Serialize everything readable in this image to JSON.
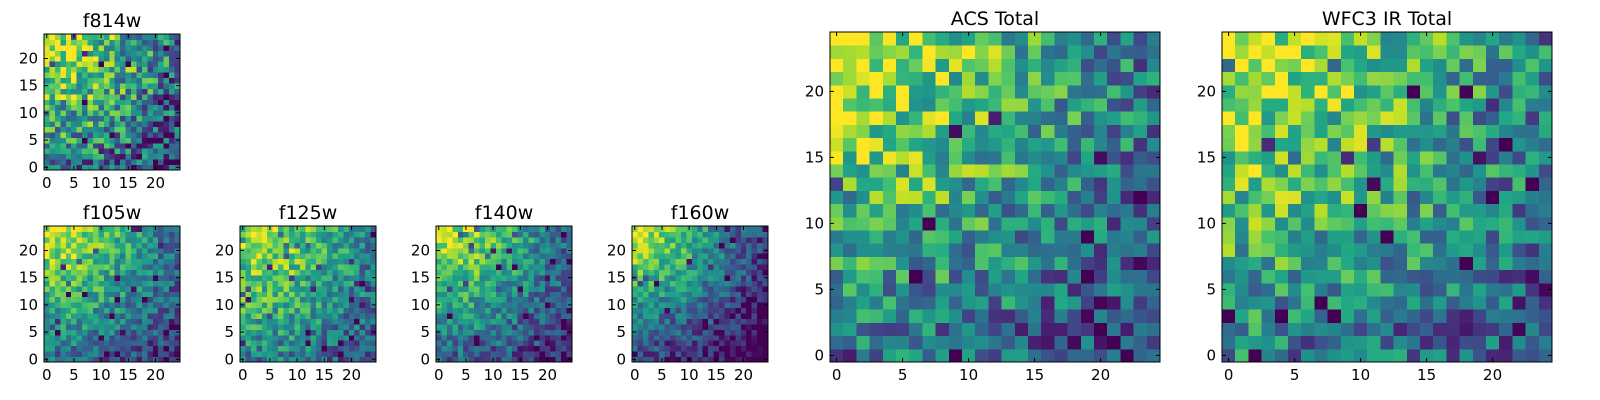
{
  "chart_data": [
    {
      "type": "heatmap",
      "title": "f814w",
      "xlabel": "",
      "ylabel": "",
      "grid_size": [
        25,
        25
      ],
      "xlim": [
        0,
        24
      ],
      "ylim": [
        0,
        24
      ],
      "x_ticks": [
        0,
        5,
        10,
        15,
        20
      ],
      "y_ticks": [
        0,
        5,
        10,
        15,
        20
      ],
      "colormap": "viridis",
      "grid": false,
      "pattern": {
        "peak": "top-left",
        "noise": 0.36,
        "falloff": 0.75
      }
    },
    {
      "type": "heatmap",
      "title": "f105w",
      "xlabel": "",
      "ylabel": "",
      "grid_size": [
        25,
        25
      ],
      "xlim": [
        0,
        24
      ],
      "ylim": [
        0,
        24
      ],
      "x_ticks": [
        0,
        5,
        10,
        15,
        20
      ],
      "y_ticks": [
        0,
        5,
        10,
        15,
        20
      ],
      "colormap": "viridis",
      "grid": false,
      "pattern": {
        "peak": "top-left",
        "noise": 0.22,
        "falloff": 0.8
      }
    },
    {
      "type": "heatmap",
      "title": "f125w",
      "xlabel": "",
      "ylabel": "",
      "grid_size": [
        25,
        25
      ],
      "xlim": [
        0,
        24
      ],
      "ylim": [
        0,
        24
      ],
      "x_ticks": [
        0,
        5,
        10,
        15,
        20
      ],
      "y_ticks": [
        0,
        5,
        10,
        15,
        20
      ],
      "colormap": "viridis",
      "grid": false,
      "pattern": {
        "peak": "top-left",
        "noise": 0.24,
        "falloff": 0.7
      }
    },
    {
      "type": "heatmap",
      "title": "f140w",
      "xlabel": "",
      "ylabel": "",
      "grid_size": [
        25,
        25
      ],
      "xlim": [
        0,
        24
      ],
      "ylim": [
        0,
        24
      ],
      "x_ticks": [
        0,
        5,
        10,
        15,
        20
      ],
      "y_ticks": [
        0,
        5,
        10,
        15,
        20
      ],
      "colormap": "viridis",
      "grid": false,
      "pattern": {
        "peak": "top-left",
        "noise": 0.22,
        "falloff": 0.85
      }
    },
    {
      "type": "heatmap",
      "title": "f160w",
      "xlabel": "",
      "ylabel": "",
      "grid_size": [
        25,
        25
      ],
      "xlim": [
        0,
        24
      ],
      "ylim": [
        0,
        24
      ],
      "x_ticks": [
        0,
        5,
        10,
        15,
        20
      ],
      "y_ticks": [
        0,
        5,
        10,
        15,
        20
      ],
      "colormap": "viridis",
      "grid": false,
      "pattern": {
        "peak": "top-left",
        "noise": 0.2,
        "falloff": 1.05
      }
    },
    {
      "type": "heatmap",
      "title": "ACS Total",
      "xlabel": "",
      "ylabel": "",
      "grid_size": [
        25,
        25
      ],
      "xlim": [
        0,
        24
      ],
      "ylim": [
        0,
        24
      ],
      "x_ticks": [
        0,
        5,
        10,
        15,
        20
      ],
      "y_ticks": [
        0,
        5,
        10,
        15,
        20
      ],
      "colormap": "viridis",
      "grid": false,
      "pattern": {
        "peak": "top-left",
        "noise": 0.3,
        "falloff": 0.75
      }
    },
    {
      "type": "heatmap",
      "title": "WFC3 IR Total",
      "xlabel": "",
      "ylabel": "",
      "grid_size": [
        25,
        25
      ],
      "xlim": [
        0,
        24
      ],
      "ylim": [
        0,
        24
      ],
      "x_ticks": [
        0,
        5,
        10,
        15,
        20
      ],
      "y_ticks": [
        0,
        5,
        10,
        15,
        20
      ],
      "colormap": "viridis",
      "grid": false,
      "pattern": {
        "peak": "top-left",
        "noise": 0.3,
        "falloff": 0.7
      }
    }
  ]
}
